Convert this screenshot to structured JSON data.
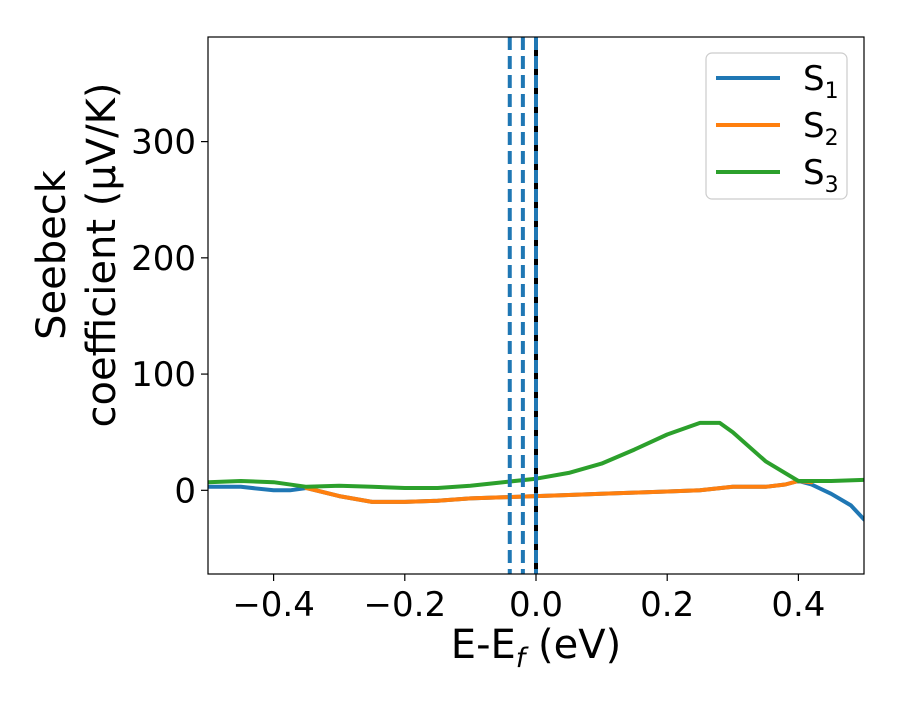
{
  "chart_data": {
    "type": "line",
    "title": "",
    "xlabel": "E-E",
    "xlabel_sub": "f",
    "xlabel_suffix": " (eV)",
    "ylabel_line1": "Seebeck",
    "ylabel_line2": "coefficient  (μV/K)",
    "xlim": [
      -0.5,
      0.5
    ],
    "ylim": [
      -72,
      390
    ],
    "xticks": [
      -0.4,
      -0.2,
      0.0,
      0.2,
      0.4
    ],
    "xtick_labels": [
      "−0.4",
      "−0.2",
      "0.0",
      "0.2",
      "0.4"
    ],
    "yticks": [
      0,
      100,
      200,
      300
    ],
    "ytick_labels": [
      "0",
      "100",
      "200",
      "300"
    ],
    "grid": false,
    "legend_position": "top-right",
    "series": [
      {
        "name": "S",
        "name_sub": "1",
        "color": "#1f77b4",
        "x": [
          -0.5,
          -0.45,
          -0.4,
          -0.375,
          -0.35,
          -0.3,
          -0.25,
          -0.2,
          -0.15,
          -0.1,
          -0.05,
          0.0,
          0.05,
          0.1,
          0.15,
          0.2,
          0.25,
          0.3,
          0.35,
          0.38,
          0.4,
          0.42,
          0.45,
          0.48,
          0.5
        ],
        "y": [
          3,
          3,
          0,
          0,
          2,
          -5,
          -10,
          -10,
          -9,
          -7,
          -6,
          -5,
          -4,
          -3,
          -2,
          -1,
          0,
          3,
          3,
          5,
          8,
          5,
          -3,
          -13,
          -25
        ]
      },
      {
        "name": "S",
        "name_sub": "2",
        "color": "#ff7f0e",
        "x": [
          -0.35,
          -0.3,
          -0.25,
          -0.2,
          -0.15,
          -0.1,
          -0.05,
          0.0,
          0.05,
          0.1,
          0.15,
          0.2,
          0.25,
          0.3,
          0.35,
          0.38,
          0.4,
          0.42
        ],
        "y": [
          2,
          -5,
          -10,
          -10,
          -9,
          -7,
          -6,
          -5,
          -4,
          -3,
          -2,
          -1,
          0,
          3,
          3,
          5,
          8,
          7
        ]
      },
      {
        "name": "S",
        "name_sub": "3",
        "color": "#2ca02c",
        "x": [
          -0.5,
          -0.45,
          -0.4,
          -0.35,
          -0.3,
          -0.25,
          -0.2,
          -0.15,
          -0.1,
          -0.05,
          0.0,
          0.05,
          0.1,
          0.15,
          0.2,
          0.25,
          0.28,
          0.3,
          0.35,
          0.4,
          0.45,
          0.5
        ],
        "y": [
          7,
          8,
          7,
          3,
          4,
          3,
          2,
          2,
          4,
          7,
          10,
          15,
          23,
          35,
          48,
          58,
          58,
          50,
          25,
          8,
          8,
          9
        ]
      }
    ],
    "vertical_lines": [
      {
        "x": -0.04,
        "color": "#1f77b4",
        "style": "dashed"
      },
      {
        "x": -0.02,
        "color": "#1f77b4",
        "style": "dashed"
      },
      {
        "x": 0.0,
        "color": "#000000",
        "style": "solid"
      },
      {
        "x": 0.0,
        "color": "#1f77b4",
        "style": "dashed"
      }
    ]
  }
}
